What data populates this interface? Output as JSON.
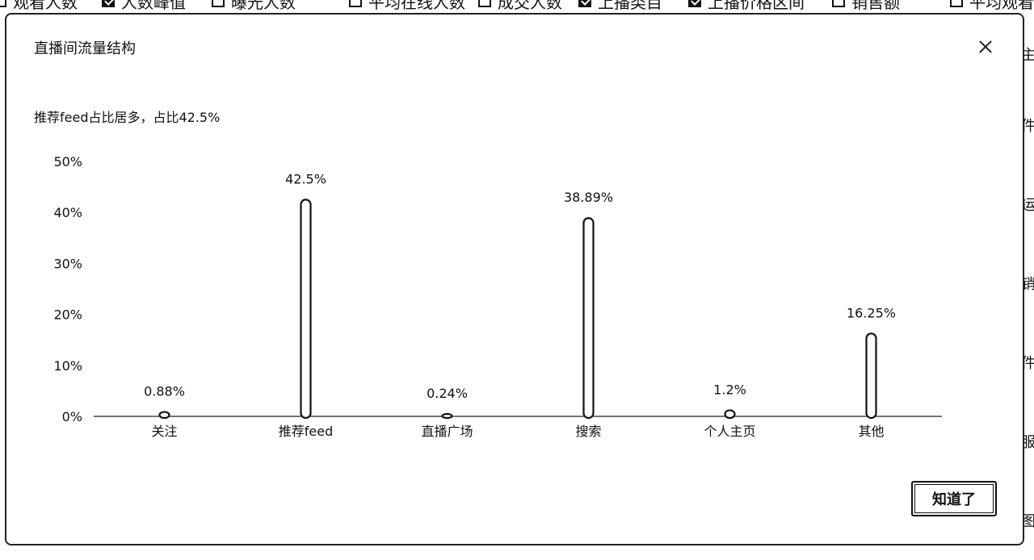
{
  "background_toolbar": [
    {
      "label": "观看人数",
      "checked": false
    },
    {
      "label": "人数峰值",
      "checked": true
    },
    {
      "label": "曝光人数",
      "checked": false
    },
    {
      "label": "平均在线人数",
      "checked": false
    },
    {
      "label": "成交人数",
      "checked": false
    },
    {
      "label": "上播类目",
      "checked": true
    },
    {
      "label": "上播价格区间",
      "checked": true
    },
    {
      "label": "销售额",
      "checked": false
    },
    {
      "label": "平均观看时",
      "checked": false
    }
  ],
  "background_right_chars": [
    "主",
    "件",
    "运",
    "销",
    "件",
    "服",
    "图"
  ],
  "modal": {
    "title": "直播间流量结构",
    "summary": "推荐feed占比居多，占比42.5%",
    "ok_label": "知道了"
  },
  "chart_data": {
    "type": "bar",
    "categories": [
      "关注",
      "推荐feed",
      "直播广场",
      "搜索",
      "个人主页",
      "其他"
    ],
    "values": [
      0.88,
      42.5,
      0.24,
      38.89,
      1.2,
      16.25
    ],
    "value_labels": [
      "0.88%",
      "42.5%",
      "0.24%",
      "38.89%",
      "1.2%",
      "16.25%"
    ],
    "y_ticks": [
      "0%",
      "10%",
      "20%",
      "30%",
      "40%",
      "50%"
    ],
    "ylim": [
      0,
      50
    ],
    "grid": false,
    "legend": "none"
  }
}
